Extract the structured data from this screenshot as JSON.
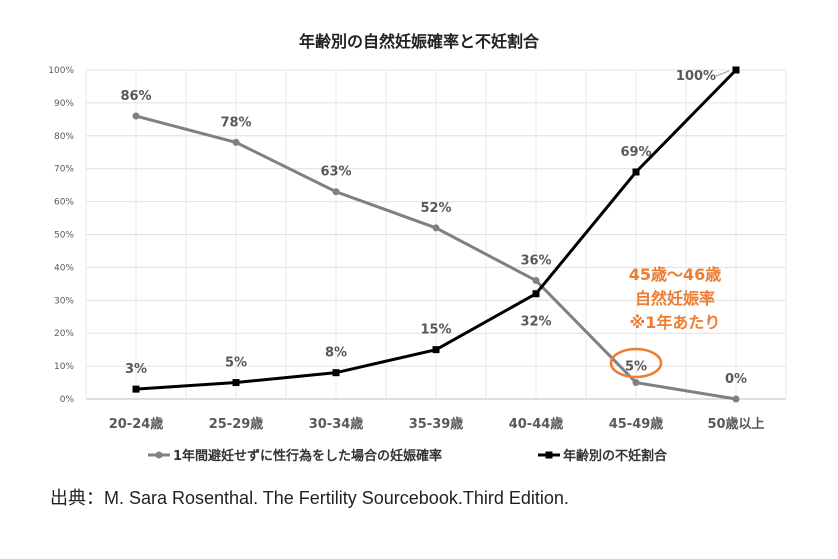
{
  "chart_data": {
    "type": "line",
    "title": "年齢別の自然妊娠確率と不妊割合",
    "categories": [
      "20-24歳",
      "25-29歳",
      "30-34歳",
      "35-39歳",
      "40-44歳",
      "45-49歳",
      "50歳以上"
    ],
    "y_ticks": [
      "0%",
      "10%",
      "20%",
      "30%",
      "40%",
      "50%",
      "60%",
      "70%",
      "80%",
      "90%",
      "100%"
    ],
    "ylim": [
      0,
      100
    ],
    "grid": true,
    "legend_position": "bottom",
    "series": [
      {
        "name": "1年間避妊せずに性行為をした場合の妊娠確率",
        "color": "#808080",
        "marker": "circle",
        "values": [
          86,
          78,
          63,
          52,
          36,
          5,
          0
        ],
        "labels": [
          "86%",
          "78%",
          "63%",
          "52%",
          "36%",
          "5%",
          "0%"
        ]
      },
      {
        "name": "年齢別の不妊割合",
        "color": "#000000",
        "marker": "square",
        "values": [
          3,
          5,
          8,
          15,
          32,
          69,
          100
        ],
        "labels": [
          "3%",
          "5%",
          "8%",
          "15%",
          "32%",
          "69%",
          "100%"
        ]
      }
    ],
    "annotation": {
      "lines": [
        "45歳〜46歳",
        "自然妊娠率",
        "※1年あたり"
      ],
      "color": "#ED7D31",
      "highlight": "5%"
    }
  },
  "source": "出典：M. Sara Rosenthal. The Fertility Sourcebook.Third Edition."
}
